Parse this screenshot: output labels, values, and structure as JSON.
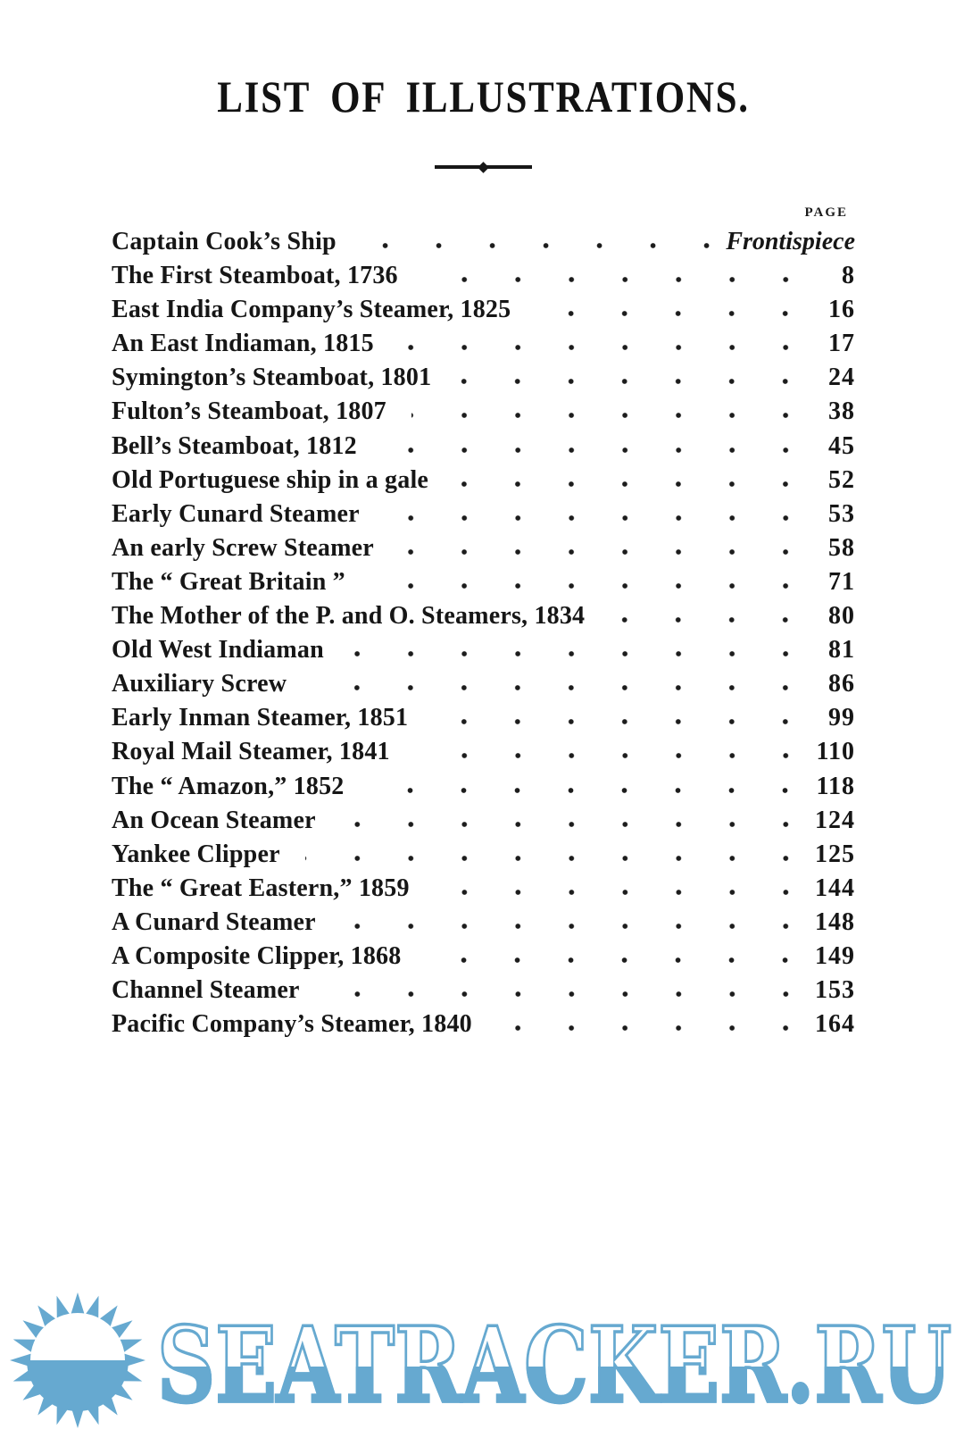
{
  "page": {
    "title": "LIST OF ILLUSTRATIONS.",
    "page_column_header": "PAGE"
  },
  "illustrations": [
    {
      "title": "Captain Cook’s Ship",
      "page": "Frontispiece",
      "italic": true
    },
    {
      "title": "The First Steamboat, 1736",
      "page": "8"
    },
    {
      "title": "East India Company’s Steamer, 1825",
      "page": "16"
    },
    {
      "title": "An East Indiaman, 1815",
      "page": "17"
    },
    {
      "title": "Symington’s Steamboat, 1801",
      "page": "24"
    },
    {
      "title": "Fulton’s Steamboat, 1807",
      "page": "38"
    },
    {
      "title": "Bell’s Steamboat, 1812",
      "page": "45"
    },
    {
      "title": "Old Portuguese ship in a gale",
      "page": "52"
    },
    {
      "title": "Early Cunard Steamer",
      "page": "53"
    },
    {
      "title": "An early Screw Steamer",
      "page": "58"
    },
    {
      "title": "The “ Great Britain ”",
      "page": "71"
    },
    {
      "title": "The Mother of the P. and O. Steamers, 1834",
      "page": "80"
    },
    {
      "title": "Old West Indiaman",
      "page": "81"
    },
    {
      "title": "Auxiliary Screw",
      "page": "86"
    },
    {
      "title": "Early Inman Steamer, 1851",
      "page": "99"
    },
    {
      "title": "Royal Mail Steamer, 1841",
      "page": "110"
    },
    {
      "title": "The “ Amazon,” 1852",
      "page": "118"
    },
    {
      "title": "An Ocean Steamer",
      "page": "124"
    },
    {
      "title": "Yankee Clipper",
      "page": "125"
    },
    {
      "title": "The “ Great Eastern,” 1859",
      "page": "144"
    },
    {
      "title": "A Cunard Steamer",
      "page": "148"
    },
    {
      "title": "A Composite Clipper, 1868",
      "page": "149"
    },
    {
      "title": "Channel Steamer",
      "page": "153"
    },
    {
      "title": "Pacific Company’s Steamer, 1840",
      "page": "164"
    }
  ],
  "watermark": {
    "text": "SEATRACKER.RU",
    "color": "#66a9d0"
  },
  "colors": {
    "ink": "#161616",
    "background": "#ffffff"
  }
}
